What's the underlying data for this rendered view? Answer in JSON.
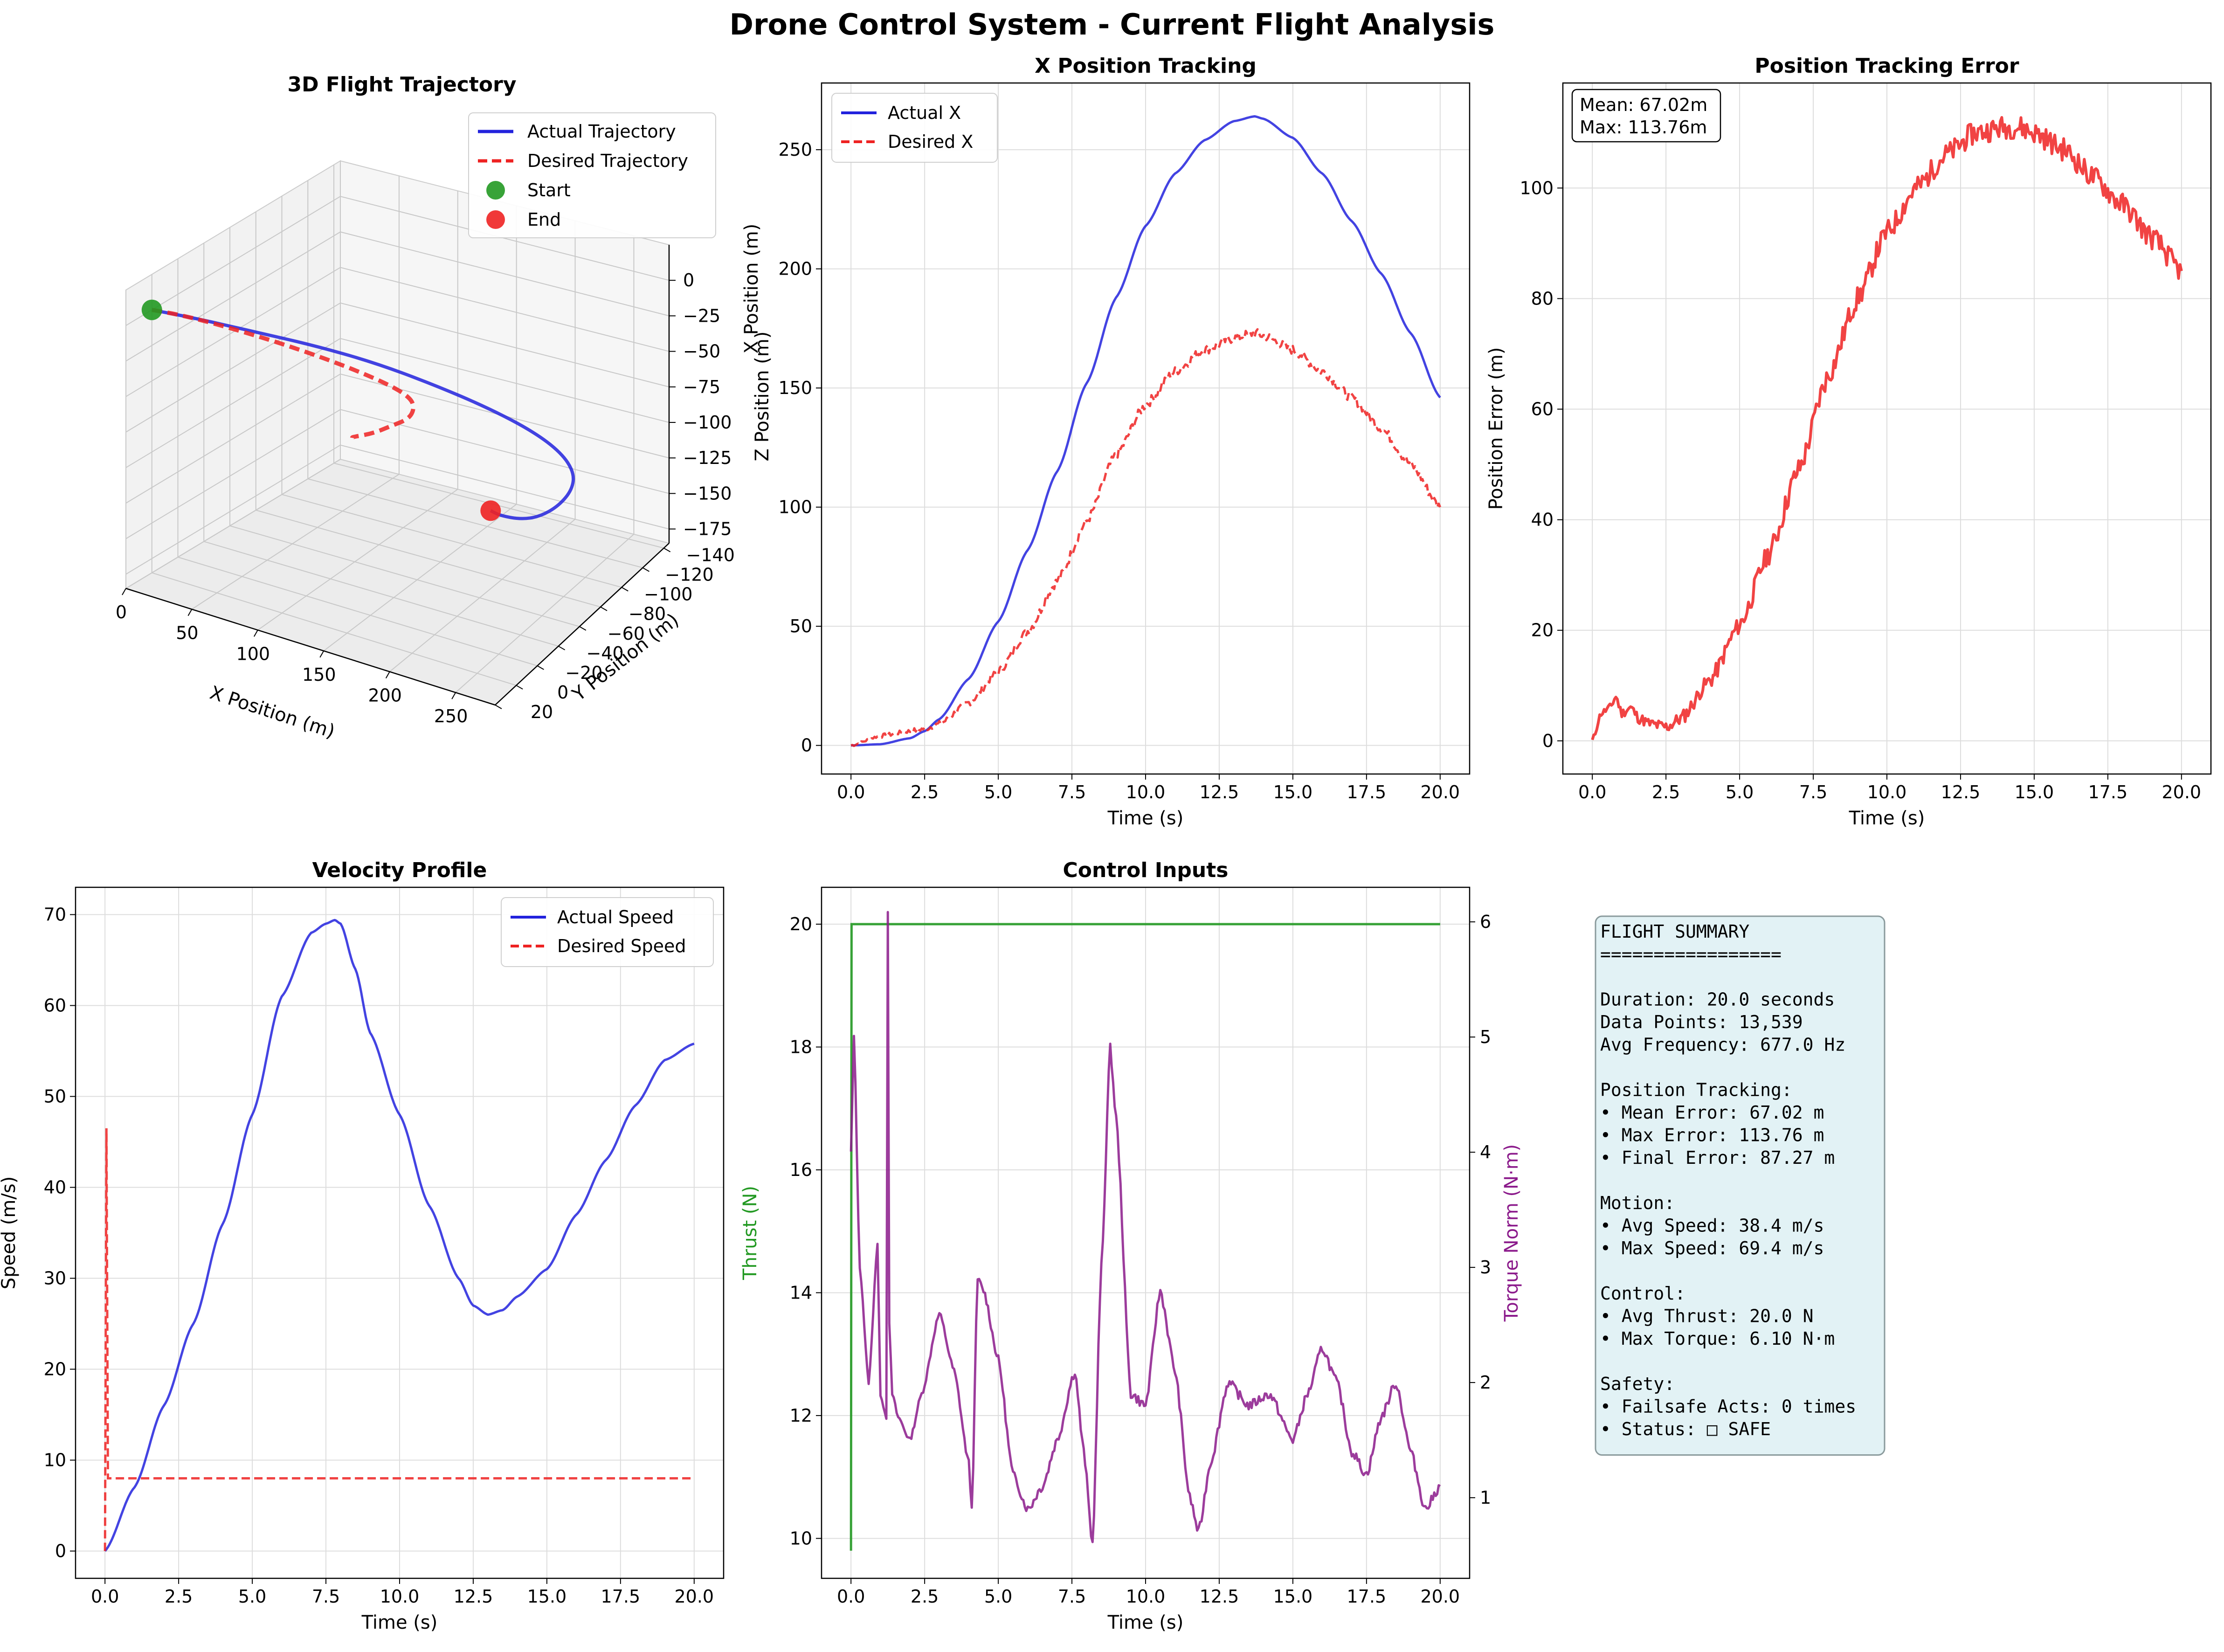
{
  "figure": {
    "title": "Drone Control System - Current Flight Analysis"
  },
  "colors": {
    "actual": "#2222dd",
    "desired": "#ee2222",
    "start": "#229922",
    "end": "#ee2222",
    "thrust": "#229922",
    "torque": "#8b1a8b",
    "grid": "#dddddd",
    "summary_bg": "#e2f2f5",
    "summary_border": "#8a9a9c"
  },
  "chart_data": [
    {
      "id": "trajectory3d",
      "type": "line",
      "title": "3D Flight Trajectory",
      "xlabel": "X Position (m)",
      "ylabel": "Y Position (m)",
      "zlabel": "Z Position (m)",
      "xticks": [
        "0",
        "50",
        "100",
        "150",
        "200",
        "250"
      ],
      "yticks": [
        "20",
        "0",
        "−20",
        "−40",
        "−60",
        "−80",
        "−100",
        "−120",
        "−140"
      ],
      "zticks": [
        "0",
        "−25",
        "−50",
        "−75",
        "−100",
        "−125",
        "−150",
        "−175"
      ],
      "legend": [
        "Actual Trajectory",
        "Desired Trajectory",
        "Start",
        "End"
      ],
      "legend_position": "top-right",
      "series": [
        {
          "name": "Actual Trajectory",
          "style": "solid",
          "points": [
            [
              0,
              0,
              0
            ],
            [
              30,
              -3,
              1
            ],
            [
              70,
              -8,
              0
            ],
            [
              110,
              -14,
              -2
            ],
            [
              150,
              -22,
              -8
            ],
            [
              190,
              -30,
              -18
            ],
            [
              225,
              -40,
              -32
            ],
            [
              250,
              -52,
              -50
            ],
            [
              262,
              -64,
              -70
            ],
            [
              262,
              -76,
              -92
            ],
            [
              250,
              -88,
              -115
            ],
            [
              230,
              -98,
              -138
            ],
            [
              205,
              -108,
              -158
            ],
            [
              180,
              -118,
              -172
            ],
            [
              155,
              -126,
              -180
            ],
            [
              145,
              -128,
              -180
            ]
          ]
        },
        {
          "name": "Desired Trajectory",
          "style": "dashed",
          "points": [
            [
              0,
              0,
              0
            ],
            [
              20,
              -2,
              1
            ],
            [
              50,
              -5,
              0
            ],
            [
              90,
              -10,
              -4
            ],
            [
              130,
              -17,
              -12
            ],
            [
              160,
              -24,
              -22
            ],
            [
              172,
              -30,
              -32
            ],
            [
              170,
              -36,
              -44
            ],
            [
              160,
              -42,
              -58
            ],
            [
              140,
              -48,
              -72
            ],
            [
              120,
              -54,
              -86
            ],
            [
              100,
              -58,
              -96
            ],
            [
              96,
              -62,
              -100
            ]
          ]
        }
      ],
      "markers": [
        {
          "name": "Start",
          "point": [
            0,
            0,
            0
          ]
        },
        {
          "name": "End",
          "point": [
            145,
            -128,
            -180
          ]
        }
      ]
    },
    {
      "id": "xpos",
      "type": "line",
      "title": "X Position Tracking",
      "xlabel": "Time (s)",
      "ylabel": "X Position (m)",
      "xlim": [
        -1,
        21
      ],
      "ylim": [
        -12,
        278
      ],
      "xticks": [
        "0.0",
        "2.5",
        "5.0",
        "7.5",
        "10.0",
        "12.5",
        "15.0",
        "17.5",
        "20.0"
      ],
      "yticks": [
        "0",
        "50",
        "100",
        "150",
        "200",
        "250"
      ],
      "legend": [
        "Actual X",
        "Desired X"
      ],
      "legend_position": "top-left",
      "x": [
        0,
        1,
        2,
        2.5,
        3,
        4,
        5,
        6,
        7,
        8,
        9,
        10,
        11,
        12,
        13,
        13.7,
        14,
        15,
        16,
        17,
        18,
        19,
        20
      ],
      "series": [
        {
          "name": "Actual X",
          "style": "solid",
          "values": [
            0,
            0.5,
            3,
            6,
            11,
            28,
            52,
            82,
            115,
            152,
            188,
            218,
            240,
            254,
            262,
            264,
            263,
            255,
            240,
            220,
            198,
            173,
            146
          ]
        },
        {
          "name": "Desired X",
          "style": "dashed",
          "noise": 3,
          "values": [
            0,
            4,
            6,
            7,
            9,
            18,
            31,
            48,
            69,
            94,
            122,
            143,
            157,
            166,
            171,
            173,
            172,
            166,
            157,
            146,
            133,
            118,
            100
          ]
        }
      ]
    },
    {
      "id": "error",
      "type": "line",
      "title": "Position Tracking Error",
      "xlabel": "Time (s)",
      "ylabel": "Position Error (m)",
      "xlim": [
        -1,
        21
      ],
      "ylim": [
        -6,
        119
      ],
      "xticks": [
        "0.0",
        "2.5",
        "5.0",
        "7.5",
        "10.0",
        "12.5",
        "15.0",
        "17.5",
        "20.0"
      ],
      "yticks": [
        "0",
        "20",
        "40",
        "60",
        "80",
        "100"
      ],
      "annotation": [
        "Mean: 67.02m",
        "Max: 113.76m"
      ],
      "x": [
        0,
        0.3,
        0.6,
        0.8,
        1.0,
        1.3,
        1.6,
        2.0,
        2.5,
        3,
        4,
        5,
        6,
        7,
        8,
        9,
        10,
        11,
        12,
        13,
        14,
        14.5,
        15,
        16,
        17,
        18,
        19,
        20
      ],
      "series": [
        {
          "name": "Position Error",
          "style": "solid",
          "noise": 3,
          "values": [
            0,
            5,
            6,
            8,
            5,
            6,
            4,
            3,
            2.5,
            4,
            11,
            21,
            34,
            49,
            66,
            80,
            92,
            100,
            106,
            110,
            111,
            111,
            110,
            107,
            102,
            97,
            91,
            85
          ]
        }
      ]
    },
    {
      "id": "velocity",
      "type": "line",
      "title": "Velocity Profile",
      "xlabel": "Time (s)",
      "ylabel": "Speed (m/s)",
      "xlim": [
        -1,
        21
      ],
      "ylim": [
        -3,
        73
      ],
      "xticks": [
        "0.0",
        "2.5",
        "5.0",
        "7.5",
        "10.0",
        "12.5",
        "15.0",
        "17.5",
        "20.0"
      ],
      "yticks": [
        "0",
        "10",
        "20",
        "30",
        "40",
        "50",
        "60",
        "70"
      ],
      "legend": [
        "Actual Speed",
        "Desired Speed"
      ],
      "legend_position": "top-right",
      "x": [
        0,
        1,
        2,
        3,
        4,
        5,
        6,
        7,
        7.5,
        7.8,
        8,
        8.5,
        9,
        10,
        11,
        12,
        12.5,
        13,
        13.5,
        14,
        15,
        16,
        17,
        18,
        19,
        20
      ],
      "series": [
        {
          "name": "Actual Speed",
          "style": "solid",
          "values": [
            0,
            7,
            16,
            25,
            36,
            48,
            61,
            68,
            69,
            69.4,
            69,
            64,
            57,
            48,
            38,
            30,
            27,
            26,
            26.5,
            28,
            31,
            37,
            43,
            49,
            54,
            55.8
          ]
        },
        {
          "name": "Desired Speed",
          "style": "dashed",
          "x": [
            0,
            0.05,
            0.1,
            0.15,
            1,
            20
          ],
          "values": [
            0,
            46.5,
            8,
            8,
            8,
            8
          ]
        }
      ]
    },
    {
      "id": "control",
      "type": "line",
      "title": "Control Inputs",
      "xlabel": "Time (s)",
      "ylabel": "Thrust (N)",
      "y2label": "Torque Norm (N·m)",
      "xlim": [
        -1,
        21
      ],
      "ylim": [
        9.35,
        20.6
      ],
      "y2lim": [
        0.3,
        6.3
      ],
      "xticks": [
        "0.0",
        "2.5",
        "5.0",
        "7.5",
        "10.0",
        "12.5",
        "15.0",
        "17.5",
        "20.0"
      ],
      "yticks": [
        "10",
        "12",
        "14",
        "16",
        "18",
        "20"
      ],
      "y2ticks": [
        "1",
        "2",
        "3",
        "4",
        "5",
        "6"
      ],
      "series": [
        {
          "name": "Thrust",
          "axis": "left",
          "style": "solid",
          "x": [
            0,
            0.02,
            0.05,
            1.2,
            1.25,
            1.3,
            1.35,
            20
          ],
          "values": [
            9.8,
            20,
            20,
            20,
            20,
            20,
            20,
            20
          ]
        },
        {
          "name": "Torque Norm",
          "axis": "right",
          "style": "solid",
          "x": [
            0,
            0.1,
            0.3,
            0.6,
            0.9,
            1.0,
            1.2,
            1.25,
            1.3,
            1.4,
            1.6,
            2.0,
            2.4,
            3.0,
            3.5,
            4.0,
            4.1,
            4.3,
            4.5,
            5.0,
            5.5,
            6.0,
            6.5,
            7.0,
            7.6,
            7.9,
            8.2,
            8.5,
            8.8,
            9.0,
            9.5,
            10.0,
            10.5,
            11.0,
            11.5,
            11.8,
            12.2,
            12.8,
            13.5,
            14.2,
            15.0,
            15.5,
            16.0,
            16.5,
            17.0,
            17.5,
            18.0,
            18.5,
            19.0,
            19.5,
            20.0
          ],
          "values": [
            4.0,
            5.0,
            3.0,
            2.0,
            3.2,
            1.9,
            1.7,
            6.1,
            2.5,
            1.9,
            1.7,
            1.5,
            1.9,
            2.6,
            2.1,
            1.3,
            0.9,
            2.9,
            2.8,
            2.2,
            1.2,
            0.9,
            1.1,
            1.5,
            2.1,
            1.4,
            0.6,
            3.0,
            4.9,
            4.3,
            1.9,
            1.8,
            2.8,
            2.1,
            1.0,
            0.7,
            1.3,
            2.0,
            1.8,
            1.9,
            1.5,
            1.9,
            2.3,
            2.0,
            1.4,
            1.2,
            1.7,
            2.0,
            1.4,
            0.9,
            1.1
          ]
        }
      ]
    }
  ],
  "summary": {
    "lines": [
      "FLIGHT SUMMARY",
      "=================",
      "",
      "Duration: 20.0 seconds",
      "Data Points: 13,539",
      "Avg Frequency: 677.0 Hz",
      "",
      "Position Tracking:",
      "• Mean Error: 67.02 m",
      "• Max Error: 113.76 m",
      "• Final Error: 87.27 m",
      "",
      "Motion:",
      "• Avg Speed: 38.4 m/s",
      "• Max Speed: 69.4 m/s",
      "",
      "Control:",
      "• Avg Thrust: 20.0 N",
      "• Max Torque: 6.10 N·m",
      "",
      "Safety:",
      "• Failsafe Acts: 0 times",
      "• Status: □ SAFE"
    ]
  }
}
